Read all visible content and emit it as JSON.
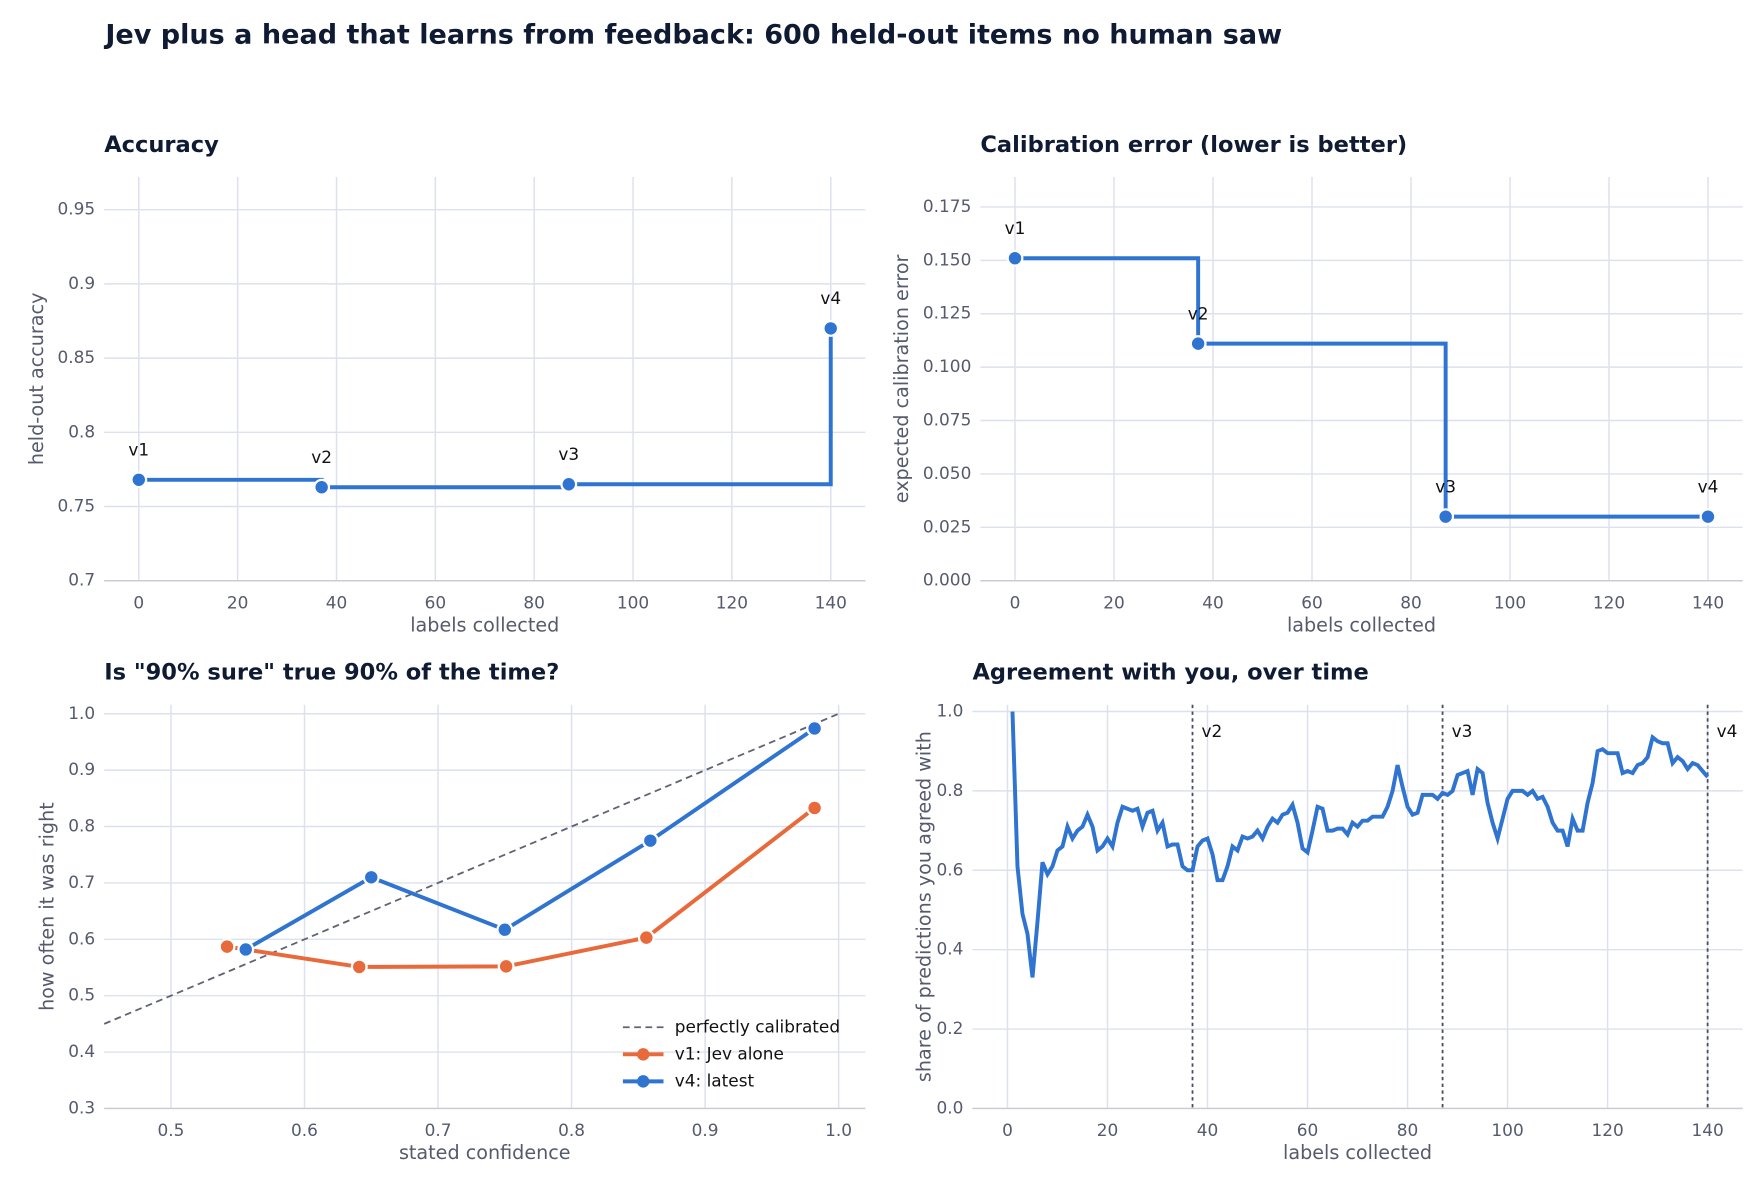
{
  "title": "Jev plus a head that learns from feedback: 600 held-out items no human saw",
  "chart_data": [
    {
      "type": "step",
      "title": "Accuracy",
      "xlabel": "labels collected",
      "ylabel": "held-out accuracy",
      "x": [
        0,
        37,
        87,
        140
      ],
      "values": [
        0.768,
        0.763,
        0.765,
        0.87
      ],
      "point_labels": [
        "v1",
        "v2",
        "v3",
        "v4"
      ],
      "color": "#2f74d0",
      "xlim": [
        -7,
        147
      ],
      "ylim": [
        0.7,
        0.972
      ],
      "xticks": [
        0,
        20,
        40,
        60,
        80,
        100,
        120,
        140
      ],
      "yticks": [
        0.7,
        0.75,
        0.8,
        0.85,
        0.9,
        0.95
      ],
      "grid": true
    },
    {
      "type": "step",
      "title": "Calibration error (lower is better)",
      "xlabel": "labels collected",
      "ylabel": "expected calibration error",
      "x": [
        0,
        37,
        87,
        140
      ],
      "values": [
        0.151,
        0.111,
        0.03,
        0.03
      ],
      "point_labels": [
        "v1",
        "v2",
        "v3",
        "v4"
      ],
      "color": "#2f74d0",
      "xlim": [
        -7,
        147
      ],
      "ylim": [
        0,
        0.189
      ],
      "xticks": [
        0,
        20,
        40,
        60,
        80,
        100,
        120,
        140
      ],
      "yticks": [
        {
          "value": 0,
          "label": "0.000"
        },
        0.025,
        {
          "value": 0.05,
          "label": "0.050"
        },
        0.075,
        {
          "value": 0.1,
          "label": "0.100"
        },
        0.125,
        {
          "value": 0.15,
          "label": "0.150"
        },
        0.175
      ],
      "grid": true
    },
    {
      "type": "line",
      "title": "Is \"90% sure\" true 90% of the time?",
      "xlabel": "stated confidence",
      "ylabel": "how often it was right",
      "series": [
        {
          "name": "perfectly calibrated",
          "color": "#5f6372",
          "dash": true,
          "markers": false,
          "x": [
            0.45,
            1
          ],
          "values": [
            0.45,
            1
          ]
        },
        {
          "name": "v1: Jev alone",
          "color": "#e8693a",
          "dash": false,
          "markers": true,
          "x": [
            0.542,
            0.641,
            0.751,
            0.856,
            0.982
          ],
          "values": [
            0.587,
            0.551,
            0.552,
            0.603,
            0.833
          ]
        },
        {
          "name": "v4: latest",
          "color": "#2f74d0",
          "dash": false,
          "markers": true,
          "x": [
            0.556,
            0.65,
            0.75,
            0.859,
            0.982
          ],
          "values": [
            0.582,
            0.71,
            0.617,
            0.775,
            0.974
          ]
        }
      ],
      "legend": "lower right",
      "xlim": [
        0.45,
        1.02
      ],
      "ylim": [
        0.3,
        1.016
      ],
      "xticks": [
        0.5,
        0.6,
        0.7,
        0.8,
        0.9,
        {
          "value": 1,
          "label": "1.0"
        }
      ],
      "yticks": [
        0.3,
        0.4,
        0.5,
        0.6,
        0.7,
        0.8,
        0.9,
        {
          "value": 1,
          "label": "1.0"
        }
      ],
      "grid": true
    },
    {
      "type": "line",
      "title": "Agreement with you, over time",
      "xlabel": "labels collected",
      "ylabel": "share of predictions you agreed with",
      "x": [
        1,
        2,
        3,
        4,
        5,
        6,
        7,
        8,
        9,
        10,
        11,
        12,
        13,
        14,
        15,
        16,
        17,
        18,
        19,
        20,
        21,
        22,
        23,
        24,
        25,
        26,
        27,
        28,
        29,
        30,
        31,
        32,
        33,
        34,
        35,
        36,
        37,
        38,
        39,
        40,
        41,
        42,
        43,
        44,
        45,
        46,
        47,
        48,
        49,
        50,
        51,
        52,
        53,
        54,
        55,
        56,
        57,
        58,
        59,
        60,
        61,
        62,
        63,
        64,
        65,
        66,
        67,
        68,
        69,
        70,
        71,
        72,
        73,
        74,
        75,
        76,
        77,
        78,
        79,
        80,
        81,
        82,
        83,
        84,
        85,
        86,
        87,
        88,
        89,
        90,
        91,
        92,
        93,
        94,
        95,
        96,
        97,
        98,
        99,
        100,
        101,
        102,
        103,
        104,
        105,
        106,
        107,
        108,
        109,
        110,
        111,
        112,
        113,
        114,
        115,
        116,
        117,
        118,
        119,
        120,
        121,
        122,
        123,
        124,
        125,
        126,
        127,
        128,
        129,
        130,
        131,
        132,
        133,
        134,
        135,
        136,
        137,
        138,
        139,
        140
      ],
      "values": [
        1.0,
        0.61,
        0.49,
        0.44,
        0.33,
        0.47,
        0.62,
        0.59,
        0.61,
        0.65,
        0.66,
        0.71,
        0.68,
        0.7,
        0.71,
        0.74,
        0.71,
        0.65,
        0.66,
        0.68,
        0.66,
        0.72,
        0.76,
        0.755,
        0.75,
        0.755,
        0.71,
        0.745,
        0.75,
        0.7,
        0.72,
        0.66,
        0.665,
        0.665,
        0.61,
        0.6,
        0.6,
        0.66,
        0.675,
        0.68,
        0.64,
        0.575,
        0.575,
        0.61,
        0.66,
        0.65,
        0.685,
        0.68,
        0.685,
        0.7,
        0.68,
        0.71,
        0.73,
        0.72,
        0.74,
        0.745,
        0.765,
        0.72,
        0.655,
        0.645,
        0.7,
        0.76,
        0.755,
        0.7,
        0.7,
        0.705,
        0.705,
        0.69,
        0.72,
        0.71,
        0.725,
        0.725,
        0.735,
        0.735,
        0.735,
        0.76,
        0.8,
        0.865,
        0.81,
        0.76,
        0.74,
        0.745,
        0.79,
        0.79,
        0.79,
        0.78,
        0.795,
        0.79,
        0.8,
        0.84,
        0.845,
        0.85,
        0.79,
        0.855,
        0.845,
        0.77,
        0.72,
        0.68,
        0.73,
        0.78,
        0.8,
        0.8,
        0.8,
        0.79,
        0.8,
        0.78,
        0.785,
        0.76,
        0.72,
        0.7,
        0.7,
        0.66,
        0.73,
        0.7,
        0.7,
        0.77,
        0.82,
        0.9,
        0.905,
        0.895,
        0.895,
        0.895,
        0.845,
        0.85,
        0.845,
        0.865,
        0.87,
        0.885,
        0.935,
        0.925,
        0.92,
        0.92,
        0.87,
        0.885,
        0.875,
        0.855,
        0.87,
        0.865,
        0.85,
        0.835
      ],
      "color": "#2f74d0",
      "vlines": [
        {
          "x": 37,
          "label": "v2"
        },
        {
          "x": 87,
          "label": "v3"
        },
        {
          "x": 140,
          "label": "v4"
        }
      ],
      "xlim": [
        -7,
        147
      ],
      "ylim": [
        0,
        1.017
      ],
      "xticks": [
        0,
        20,
        40,
        60,
        80,
        100,
        120,
        140
      ],
      "yticks": [
        {
          "value": 0,
          "label": "0.0"
        },
        0.2,
        0.4,
        0.6,
        0.8,
        {
          "value": 1,
          "label": "1.0"
        }
      ],
      "grid": true
    }
  ]
}
